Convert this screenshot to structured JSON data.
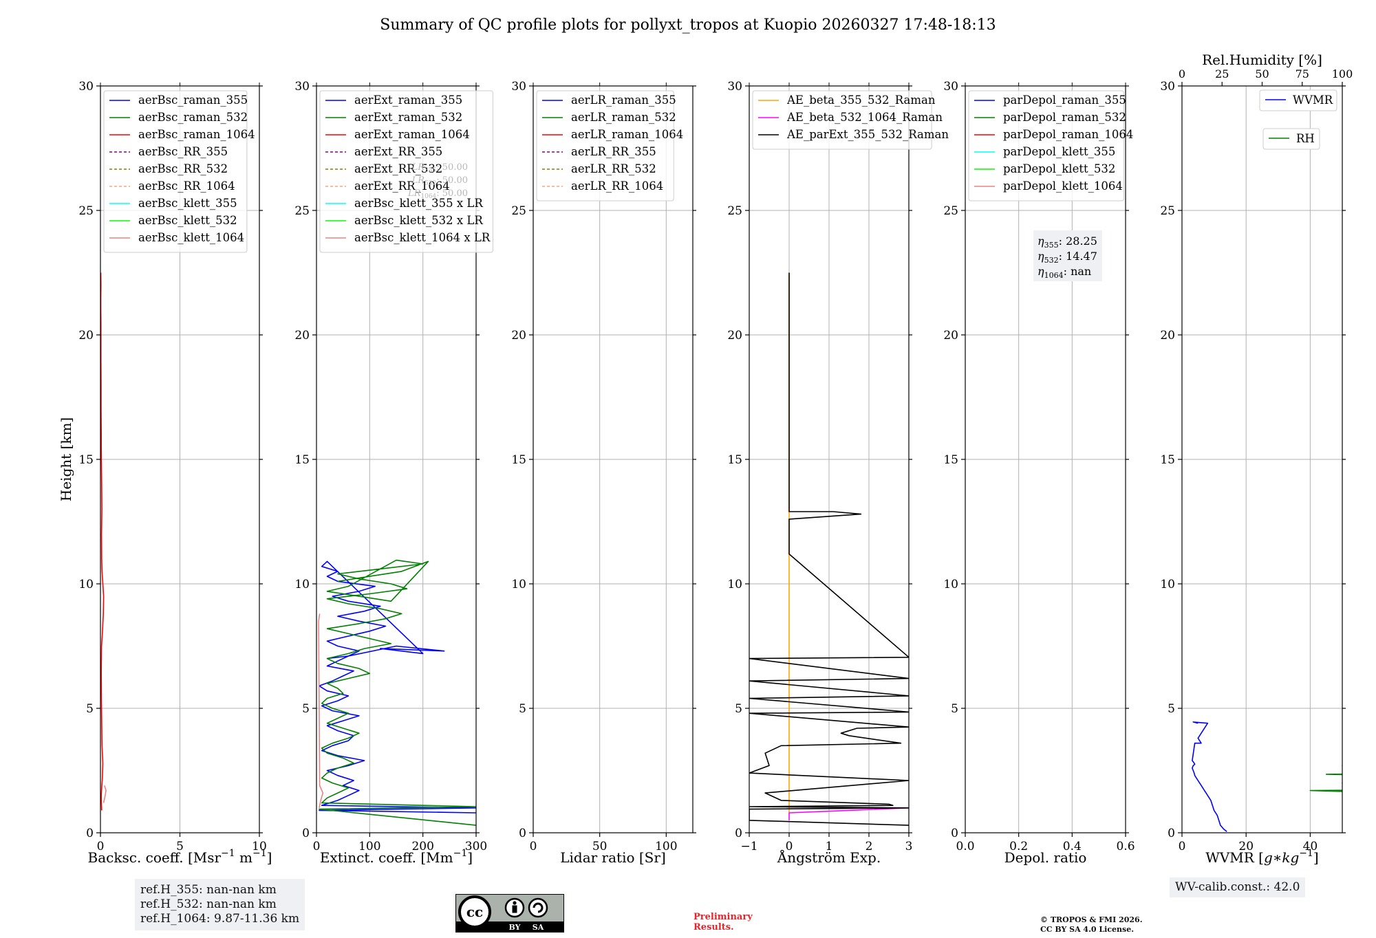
{
  "title": "Summary of QC profile plots for pollyxt_tropos at Kuopio 20260327 17:48-18:13",
  "ylabel": "Height [km]",
  "colors": {
    "blue": "#0000ff",
    "green": "#008000",
    "red": "#ff0000",
    "purple": "#800080",
    "olive": "#808000",
    "salmon": "#ffa07a",
    "cyan": "#00ffff",
    "lime": "#00ff00",
    "lightcoral": "#f08080",
    "orange": "#ffa500",
    "magenta": "#ff00ff",
    "black": "#000000"
  },
  "chart_data": [
    {
      "type": "line",
      "id": "bsc",
      "xlabel": "Backsc. coeff. [Msr$^{-1}$ m$^{-1}$]",
      "xlabel_main": "Backsc. coeff. [Msr",
      "xlabel_sup1": "−1",
      "xlabel_mid": " m",
      "xlabel_sup2": "−1",
      "xlabel_end": "]",
      "xlim": [
        0,
        10
      ],
      "xticks": [
        0,
        5,
        10
      ],
      "xticklabels": [
        "0",
        "5",
        "10"
      ],
      "ylim": [
        0,
        30
      ],
      "yticks": [
        0,
        5,
        10,
        15,
        20,
        25,
        30
      ],
      "legend": [
        {
          "label": "aerBsc_raman_355",
          "color": "#0000ff",
          "dash": false
        },
        {
          "label": "aerBsc_raman_532",
          "color": "#008000",
          "dash": false
        },
        {
          "label": "aerBsc_raman_1064",
          "color": "#ff0000",
          "dash": false
        },
        {
          "label": "aerBsc_RR_355",
          "color": "#800080",
          "dash": true
        },
        {
          "label": "aerBsc_RR_532",
          "color": "#808000",
          "dash": true
        },
        {
          "label": "aerBsc_RR_1064",
          "color": "#ffa07a",
          "dash": true
        },
        {
          "label": "aerBsc_klett_355",
          "color": "#00ffff",
          "dash": false
        },
        {
          "label": "aerBsc_klett_532",
          "color": "#00ff00",
          "dash": false
        },
        {
          "label": "aerBsc_klett_1064",
          "color": "#f08080",
          "dash": false
        }
      ],
      "series": [
        {
          "name": "aerBsc_raman_1064",
          "color": "#ff0000",
          "x": [
            0.08,
            0.06,
            0.05,
            0.08,
            0.12,
            0.15,
            0.1,
            0.08,
            0.06,
            0.05,
            0.07,
            0.12,
            0.18,
            0.2,
            0.15,
            0.1,
            0.08,
            0.07,
            0.09,
            0.08,
            0.06,
            0.05,
            0.05,
            0.04,
            0.04,
            0.03,
            0.03,
            0.03,
            0.02,
            0.02,
            0.03,
            0.02
          ],
          "y": [
            0.9,
            1.2,
            1.5,
            1.8,
            2.2,
            2.8,
            3.5,
            4.5,
            5.5,
            6.5,
            7.5,
            8.0,
            8.8,
            9.5,
            10.0,
            10.5,
            11.0,
            12.0,
            13.0,
            14.0,
            15.0,
            15.5,
            16.0,
            17.0,
            18.0,
            19.0,
            20.0,
            20.5,
            21.0,
            21.5,
            22.0,
            22.5
          ]
        },
        {
          "name": "aerBsc_klett_1064",
          "color": "#f08080",
          "x": [
            0.2,
            0.3,
            0.35,
            0.25
          ],
          "y": [
            1.2,
            1.5,
            1.7,
            1.9
          ]
        }
      ]
    },
    {
      "type": "line",
      "id": "ext",
      "xlabel": "Extinct. coeff. [Mm$^{-1}$]",
      "xlabel_main": "Extinct. coeff. [Mm",
      "xlabel_sup1": "−1",
      "xlabel_end": "]",
      "xlim": [
        0,
        300
      ],
      "xticks": [
        0,
        100,
        200,
        300
      ],
      "xticklabels": [
        "0",
        "100",
        "200",
        "300"
      ],
      "ylim": [
        0,
        30
      ],
      "yticks": [
        0,
        5,
        10,
        15,
        20,
        25,
        30
      ],
      "lr_notes": [
        {
          "sym": "LR",
          "sub": "355",
          "value": "50.00"
        },
        {
          "sym": "LR",
          "sub": "532",
          "value": "50.00"
        },
        {
          "sym": "LR",
          "sub": "1064",
          "value": "50.00"
        }
      ],
      "legend": [
        {
          "label": "aerExt_raman_355",
          "color": "#0000ff",
          "dash": false
        },
        {
          "label": "aerExt_raman_532",
          "color": "#008000",
          "dash": false
        },
        {
          "label": "aerExt_raman_1064",
          "color": "#ff0000",
          "dash": false
        },
        {
          "label": "aerExt_RR_355",
          "color": "#800080",
          "dash": true
        },
        {
          "label": "aerExt_RR_532",
          "color": "#808000",
          "dash": true
        },
        {
          "label": "aerExt_RR_1064",
          "color": "#ffa07a",
          "dash": true
        },
        {
          "label": "aerBsc_klett_355 x LR",
          "color": "#00ffff",
          "dash": false
        },
        {
          "label": "aerBsc_klett_532 x LR",
          "color": "#00ff00",
          "dash": false
        },
        {
          "label": "aerBsc_klett_1064 x LR",
          "color": "#f08080",
          "dash": false
        }
      ],
      "series": [
        {
          "name": "aerExt_raman_355",
          "color": "#0000ff",
          "x": [
            300,
            5,
            300,
            10,
            40,
            60,
            80,
            50,
            70,
            40,
            20,
            60,
            90,
            40,
            10,
            30,
            60,
            70,
            40,
            20,
            50,
            80,
            30,
            10,
            40,
            60,
            20,
            5,
            30,
            50,
            70,
            20,
            40,
            60,
            80,
            40,
            20,
            60,
            100,
            130,
            80,
            40,
            90,
            120,
            60,
            30,
            80,
            110,
            40,
            20,
            40,
            10,
            20,
            200,
            120,
            240,
            150,
            60,
            20
          ],
          "y": [
            0.8,
            0.9,
            1.0,
            1.1,
            1.3,
            1.5,
            1.7,
            1.9,
            2.1,
            2.3,
            2.5,
            2.7,
            2.9,
            3.1,
            3.3,
            3.5,
            3.7,
            3.9,
            4.1,
            4.3,
            4.5,
            4.7,
            4.9,
            5.1,
            5.3,
            5.5,
            5.7,
            5.9,
            6.1,
            6.3,
            6.5,
            6.7,
            6.9,
            7.1,
            7.3,
            7.5,
            7.7,
            7.9,
            8.1,
            8.3,
            8.5,
            8.7,
            8.9,
            9.1,
            9.3,
            9.5,
            9.7,
            9.9,
            10.1,
            10.3,
            10.5,
            10.7,
            10.9,
            7.2,
            7.4,
            7.3,
            7.5,
            7.1,
            7.0
          ]
        },
        {
          "name": "aerExt_raman_532",
          "color": "#008000",
          "x": [
            300,
            5,
            300,
            10,
            20,
            40,
            60,
            30,
            10,
            20,
            40,
            70,
            50,
            20,
            10,
            30,
            60,
            80,
            50,
            20,
            40,
            60,
            30,
            10,
            20,
            50,
            40,
            20,
            60,
            100,
            80,
            40,
            20,
            60,
            90,
            140,
            100,
            60,
            20,
            80,
            130,
            160,
            120,
            60,
            20,
            100,
            170,
            140,
            80,
            40,
            120,
            200,
            150,
            60,
            20,
            80,
            140,
            210,
            160,
            100,
            40
          ],
          "y": [
            0.3,
            0.95,
            1.05,
            1.2,
            1.4,
            1.6,
            1.8,
            2.0,
            2.2,
            2.4,
            2.6,
            2.8,
            3.0,
            3.2,
            3.4,
            3.6,
            3.8,
            4.0,
            4.2,
            4.4,
            4.6,
            4.8,
            5.0,
            5.2,
            5.4,
            5.6,
            5.8,
            6.0,
            6.2,
            6.4,
            6.6,
            6.8,
            7.0,
            7.2,
            7.4,
            7.6,
            7.8,
            8.0,
            8.2,
            8.4,
            8.6,
            8.8,
            9.0,
            9.2,
            9.4,
            9.6,
            9.8,
            10.0,
            10.2,
            10.4,
            10.6,
            10.8,
            10.95,
            9.9,
            9.7,
            9.5,
            9.3,
            10.9,
            10.5,
            10.3,
            10.1
          ]
        },
        {
          "name": "aerBsc_klett_1064 x LR",
          "color": "#f08080",
          "x": [
            5,
            8,
            12,
            6,
            4,
            6
          ],
          "y": [
            1.0,
            1.3,
            1.6,
            1.9,
            8.5,
            8.8
          ]
        }
      ]
    },
    {
      "type": "line",
      "id": "lr",
      "xlabel": "Lidar ratio [Sr]",
      "xlim": [
        0,
        120
      ],
      "xticks": [
        0,
        50,
        100
      ],
      "xticklabels": [
        "0",
        "50",
        "100"
      ],
      "ylim": [
        0,
        30
      ],
      "yticks": [
        0,
        5,
        10,
        15,
        20,
        25,
        30
      ],
      "legend": [
        {
          "label": "aerLR_raman_355",
          "color": "#0000ff",
          "dash": false
        },
        {
          "label": "aerLR_raman_532",
          "color": "#008000",
          "dash": false
        },
        {
          "label": "aerLR_raman_1064",
          "color": "#ff0000",
          "dash": false
        },
        {
          "label": "aerLR_RR_355",
          "color": "#800080",
          "dash": true
        },
        {
          "label": "aerLR_RR_532",
          "color": "#808000",
          "dash": true
        },
        {
          "label": "aerLR_RR_1064",
          "color": "#ffa07a",
          "dash": true
        }
      ],
      "series": []
    },
    {
      "type": "line",
      "id": "ae",
      "xlabel": "Ångström Exp.",
      "xlim": [
        -1,
        3
      ],
      "xticks": [
        -1,
        0,
        1,
        2,
        3
      ],
      "xticklabels": [
        "−1",
        "0",
        "1",
        "2",
        "3"
      ],
      "ylim": [
        0,
        30
      ],
      "yticks": [
        0,
        5,
        10,
        15,
        20,
        25,
        30
      ],
      "legend": [
        {
          "label": "AE_beta_355_532_Raman",
          "color": "#ffa500",
          "dash": false
        },
        {
          "label": "AE_beta_532_1064_Raman",
          "color": "#ff00ff",
          "dash": false
        },
        {
          "label": "AE_parExt_355_532_Raman",
          "color": "#000000",
          "dash": false
        }
      ],
      "series": [
        {
          "name": "AE_beta_355_532_Raman",
          "color": "#ffa500",
          "x": [
            0,
            0,
            0
          ],
          "y": [
            0.8,
            12.8,
            22.5
          ]
        },
        {
          "name": "AE_beta_532_1064_Raman",
          "color": "#ff00ff",
          "x": [
            0,
            0,
            1.5,
            3.0
          ],
          "y": [
            0.5,
            0.8,
            0.9,
            1.0
          ]
        },
        {
          "name": "AE_parExt_355_532_Raman",
          "color": "#000000",
          "x": [
            3.0,
            -1.0,
            -1.0,
            3.0,
            -1.0,
            2.6,
            2.5,
            -0.2,
            -0.6,
            3.0,
            -1.0,
            -0.5,
            -0.6,
            -0.2,
            2.8,
            1.5,
            1.3,
            1.7,
            3.0,
            -1.0,
            3.0,
            -1.0,
            3.0,
            -1.0,
            3.0,
            -1.0,
            3.0,
            0.0,
            0.0,
            1.8,
            1.1,
            0.0,
            0.0,
            0.0
          ],
          "y": [
            0.3,
            0.5,
            0.95,
            1.0,
            1.05,
            1.1,
            1.15,
            1.3,
            1.6,
            2.1,
            2.4,
            2.7,
            3.2,
            3.5,
            3.6,
            3.9,
            4.0,
            4.2,
            4.25,
            4.8,
            4.85,
            5.4,
            5.5,
            6.1,
            6.2,
            7.0,
            7.05,
            11.2,
            12.6,
            12.8,
            12.9,
            12.9,
            22.0,
            22.5
          ]
        }
      ]
    },
    {
      "type": "line",
      "id": "depol",
      "xlabel": "Depol. ratio",
      "xlim": [
        0,
        0.6
      ],
      "xticks": [
        0,
        0.2,
        0.4,
        0.6
      ],
      "xticklabels": [
        "0.0",
        "0.2",
        "0.4",
        "0.6"
      ],
      "ylim": [
        0,
        30
      ],
      "yticks": [
        0,
        5,
        10,
        15,
        20,
        25,
        30
      ],
      "eta_notes": [
        {
          "sym": "η",
          "sub": "355",
          "value": "28.25"
        },
        {
          "sym": "η",
          "sub": "532",
          "value": "14.47"
        },
        {
          "sym": "η",
          "sub": "1064",
          "value": "nan"
        }
      ],
      "legend": [
        {
          "label": "parDepol_raman_355",
          "color": "#0000ff",
          "dash": false
        },
        {
          "label": "parDepol_raman_532",
          "color": "#008000",
          "dash": false
        },
        {
          "label": "parDepol_raman_1064",
          "color": "#ff0000",
          "dash": false
        },
        {
          "label": "parDepol_klett_355",
          "color": "#00ffff",
          "dash": false
        },
        {
          "label": "parDepol_klett_532",
          "color": "#00ff00",
          "dash": false
        },
        {
          "label": "parDepol_klett_1064",
          "color": "#f08080",
          "dash": false
        }
      ],
      "series": []
    },
    {
      "type": "line",
      "id": "wv",
      "xlabel": "WVMR [g*kg$^{-1}$]",
      "xlabel_main": "WVMR [",
      "xlabel_ital": "g∗kg",
      "xlabel_sup1": "−1",
      "xlabel_end": "]",
      "xlim": [
        0,
        50
      ],
      "xticks": [
        0,
        20,
        40
      ],
      "xticklabels": [
        "0",
        "20",
        "40"
      ],
      "ylim": [
        0,
        30
      ],
      "yticks": [
        0,
        5,
        10,
        15,
        20,
        25,
        30
      ],
      "top_axis": {
        "label": "Rel.Humidity [%]",
        "xlim": [
          0,
          100
        ],
        "xticks": [
          0,
          25,
          50,
          75,
          100
        ],
        "xticklabels": [
          "0",
          "25",
          "50",
          "75",
          "100"
        ]
      },
      "legend_wvmr": {
        "label": "WVMR",
        "color": "#0000ff"
      },
      "legend_rh": {
        "label": "RH",
        "color": "#008000"
      },
      "series": [
        {
          "name": "WVMR",
          "color": "#0000ff",
          "x": [
            14,
            13,
            12,
            11.5,
            11,
            10,
            9.5,
            9,
            8,
            7.5,
            7,
            6.5,
            6,
            5.5,
            5,
            4.5,
            4,
            3.8,
            3.5,
            3.2,
            3.5,
            4,
            3.8,
            3.5,
            3.2,
            4,
            6,
            5,
            8,
            3.5,
            5
          ],
          "y": [
            0.05,
            0.15,
            0.3,
            0.5,
            0.7,
            0.9,
            1.1,
            1.3,
            1.5,
            1.6,
            1.7,
            1.8,
            1.9,
            2.0,
            2.1,
            2.2,
            2.3,
            2.4,
            2.5,
            2.6,
            2.7,
            2.75,
            2.8,
            2.85,
            2.9,
            3.6,
            3.6,
            3.8,
            4.4,
            4.45,
            4.4
          ]
        },
        {
          "name": "RH",
          "color": "#008000",
          "x": [
            98,
            65,
            40,
            90,
            100,
            70,
            50,
            80,
            95,
            60,
            45,
            85,
            100,
            75,
            55,
            90,
            70,
            50,
            80,
            60,
            100,
            95
          ],
          "y": [
            1.4,
            1.6,
            1.7,
            1.75,
            1.8,
            1.9,
            2.0,
            2.1,
            2.2,
            2.3,
            2.35,
            2.4,
            2.45,
            2.5,
            2.55,
            2.6,
            2.65,
            2.7,
            2.75,
            2.8,
            3.5,
            3.5
          ]
        }
      ]
    }
  ],
  "ref_box": {
    "lines": [
      "ref.H_355: nan-nan km",
      "ref.H_532: nan-nan km",
      "ref.H_1064: 9.87-11.36 km"
    ]
  },
  "wv_calib": "WV-calib.const.: 42.0",
  "license_badge": {
    "cc": "cc",
    "by": "BY",
    "sa": "SA"
  },
  "preliminary": [
    "Preliminary",
    "Results."
  ],
  "copyright": [
    "© TROPOS & FMI 2026.",
    "CC BY SA 4.0 License."
  ]
}
